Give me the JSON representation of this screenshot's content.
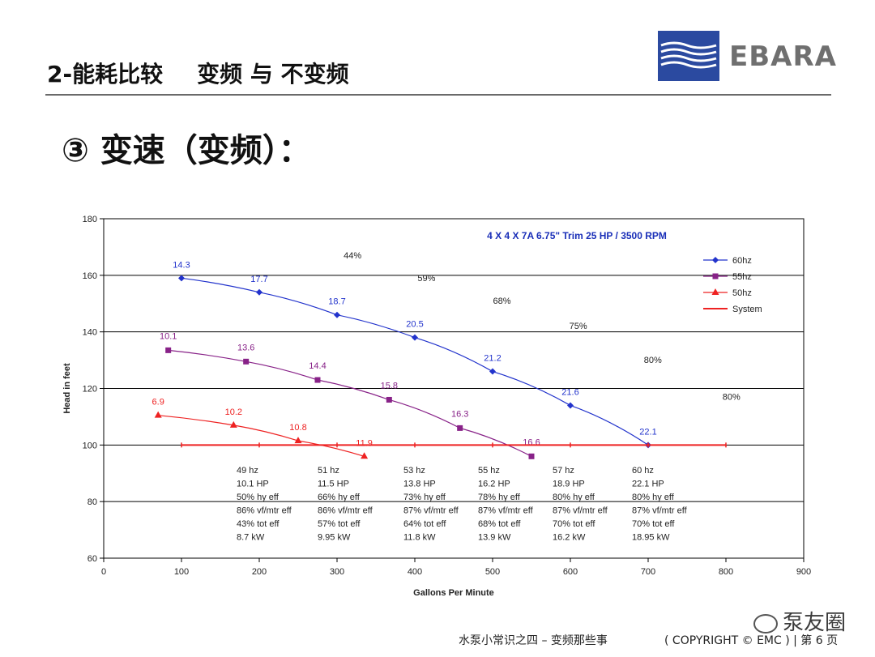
{
  "header": {
    "title": "2-能耗比较",
    "subtitle": "变频 与 不变频"
  },
  "logo": {
    "text": "EBARA",
    "color": "#2b4aa0"
  },
  "section_title": "③ 变速（变频）：",
  "chart_data": {
    "type": "line",
    "title": "4 X 4 X 7A   6.75\" Trim  25 HP / 3500 RPM",
    "xlabel": "Gallons Per Minute",
    "ylabel": "Head in feet",
    "xlim": [
      0,
      900
    ],
    "ylim": [
      60,
      180
    ],
    "xticks": [
      0,
      100,
      200,
      300,
      400,
      500,
      600,
      700,
      800,
      900
    ],
    "yticks": [
      60,
      80,
      100,
      120,
      140,
      160,
      180
    ],
    "grid": "horizontal",
    "legend_position": "right",
    "series": [
      {
        "name": "60hz",
        "color": "#2233cc",
        "marker": "diamond",
        "x": [
          100,
          200,
          300,
          400,
          500,
          600,
          700
        ],
        "y": [
          159,
          154,
          146,
          138,
          126,
          114,
          100
        ],
        "labels": [
          "14.3",
          "17.7",
          "18.7",
          "20.5",
          "21.2",
          "21.6",
          "22.1"
        ]
      },
      {
        "name": "55hz",
        "color": "#882288",
        "marker": "square",
        "x": [
          83,
          183,
          275,
          367,
          458,
          550
        ],
        "y": [
          133.5,
          129.5,
          123,
          116,
          106,
          96
        ],
        "labels": [
          "10.1",
          "13.6",
          "14.4",
          "15.8",
          "16.3",
          "16.6"
        ]
      },
      {
        "name": "50hz",
        "color": "#ee2222",
        "marker": "triangle",
        "x": [
          70,
          167,
          250,
          335
        ],
        "y": [
          110.5,
          107,
          101.5,
          96
        ],
        "labels": [
          "6.9",
          "10.2",
          "10.8",
          "11.9"
        ]
      },
      {
        "name": "System",
        "color": "#ee2222",
        "marker": "bar",
        "x": [
          100,
          200,
          300,
          400,
          500,
          600,
          700,
          800
        ],
        "y": [
          100,
          100,
          100,
          100,
          100,
          100,
          100,
          100
        ]
      }
    ],
    "efficiency_labels": [
      {
        "x": 320,
        "y": 166,
        "text": "44%"
      },
      {
        "x": 415,
        "y": 158,
        "text": "59%"
      },
      {
        "x": 512,
        "y": 150,
        "text": "68%"
      },
      {
        "x": 610,
        "y": 141,
        "text": "75%"
      },
      {
        "x": 706,
        "y": 129,
        "text": "80%"
      },
      {
        "x": 807,
        "y": 116,
        "text": "80%"
      }
    ],
    "operating_points": [
      {
        "hz": "49 hz",
        "hp": "10.1 HP",
        "hy": "50% hy eff",
        "vf": "86% vf/mtr eff",
        "tot": "43% tot eff",
        "kw": "8.7 kW"
      },
      {
        "hz": "51 hz",
        "hp": "11.5 HP",
        "hy": "66% hy eff",
        "vf": "86% vf/mtr eff",
        "tot": "57% tot eff",
        "kw": "9.95 kW"
      },
      {
        "hz": "53 hz",
        "hp": "13.8 HP",
        "hy": "73% hy eff",
        "vf": "87% vf/mtr eff",
        "tot": "64% tot eff",
        "kw": "11.8 kW"
      },
      {
        "hz": "55 hz",
        "hp": "16.2 HP",
        "hy": "78% hy eff",
        "vf": "87% vf/mtr eff",
        "tot": "68% tot eff",
        "kw": "13.9 kW"
      },
      {
        "hz": "57 hz",
        "hp": "18.9 HP",
        "hy": "80% hy eff",
        "vf": "87% vf/mtr eff",
        "tot": "70% tot eff",
        "kw": "16.2 kW"
      },
      {
        "hz": "60 hz",
        "hp": "22.1 HP",
        "hy": "80% hy eff",
        "vf": "87% vf/mtr eff",
        "tot": "70% tot eff",
        "kw": "18.95 kW"
      }
    ]
  },
  "footer": {
    "left": "水泵小常识之四 – 变频那些事",
    "right": "( COPYRIGHT © EMC ) |  第 6 页"
  },
  "watermark": "泵友圈"
}
